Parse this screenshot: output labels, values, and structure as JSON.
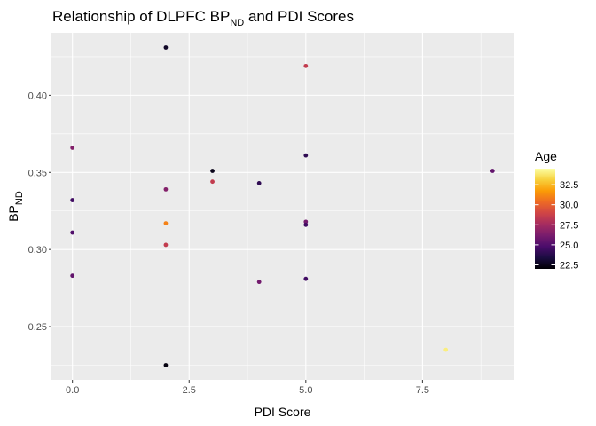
{
  "chart_data": {
    "type": "scatter",
    "title_main": "Relationship of DLPFC BP",
    "title_sub": "ND",
    "title_end": " and PDI Scores",
    "xlabel": "PDI Score",
    "ylabel_main": "BP",
    "ylabel_sub": "ND",
    "xlim": [
      -0.45,
      9.45
    ],
    "ylim": [
      0.2155,
      0.4405
    ],
    "x_ticks": [
      0,
      2.5,
      5,
      7.5
    ],
    "x_tick_labels": [
      "0.0",
      "2.5",
      "5.0",
      "7.5"
    ],
    "y_ticks": [
      0.25,
      0.3,
      0.35,
      0.4
    ],
    "y_tick_labels": [
      "0.25",
      "0.30",
      "0.35",
      "0.40"
    ],
    "grid": true,
    "legend_position": "right",
    "color_scale": {
      "name": "Age",
      "limits": [
        22.0,
        34.5
      ],
      "ticks": [
        22.5,
        25.0,
        27.5,
        30.0,
        32.5
      ],
      "tick_labels": [
        "22.5",
        "25.0",
        "27.5",
        "30.0",
        "32.5"
      ],
      "palette": [
        "#000004",
        "#1B0C41",
        "#4A0C6B",
        "#781C6D",
        "#A52C60",
        "#CF4446",
        "#ED6925",
        "#FB9B06",
        "#F7D13D",
        "#FCFFA4"
      ]
    },
    "points": [
      {
        "x": 0,
        "y": 0.366,
        "age": 26.5
      },
      {
        "x": 0,
        "y": 0.332,
        "age": 24.5
      },
      {
        "x": 0,
        "y": 0.311,
        "age": 25.0
      },
      {
        "x": 0,
        "y": 0.283,
        "age": 25.5
      },
      {
        "x": 2,
        "y": 0.431,
        "age": 22.8
      },
      {
        "x": 2,
        "y": 0.339,
        "age": 26.5
      },
      {
        "x": 2,
        "y": 0.317,
        "age": 31.0
      },
      {
        "x": 2,
        "y": 0.303,
        "age": 28.5
      },
      {
        "x": 2,
        "y": 0.225,
        "age": 22.3
      },
      {
        "x": 3,
        "y": 0.351,
        "age": 22.5
      },
      {
        "x": 3,
        "y": 0.344,
        "age": 28.5
      },
      {
        "x": 4,
        "y": 0.343,
        "age": 24.0
      },
      {
        "x": 4,
        "y": 0.279,
        "age": 26.0
      },
      {
        "x": 5,
        "y": 0.419,
        "age": 28.5
      },
      {
        "x": 5,
        "y": 0.361,
        "age": 24.0
      },
      {
        "x": 5,
        "y": 0.318,
        "age": 26.0
      },
      {
        "x": 5,
        "y": 0.316,
        "age": 24.5
      },
      {
        "x": 5,
        "y": 0.281,
        "age": 24.5
      },
      {
        "x": 8,
        "y": 0.235,
        "age": 34.0
      },
      {
        "x": 9,
        "y": 0.351,
        "age": 25.5
      }
    ]
  }
}
